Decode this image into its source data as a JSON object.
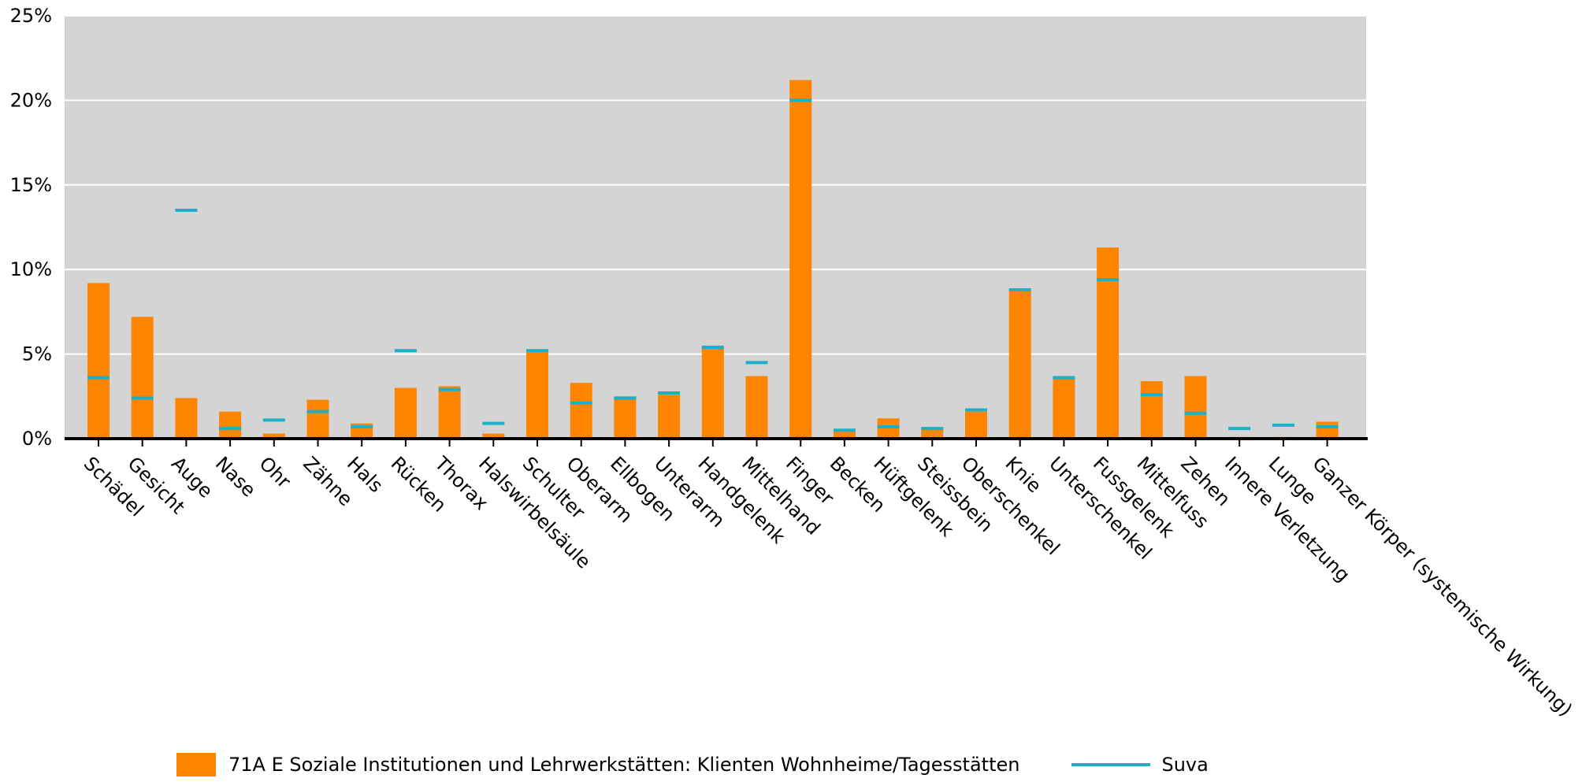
{
  "chart_data": {
    "type": "bar",
    "categories": [
      "Schädel",
      "Gesicht",
      "Auge",
      "Nase",
      "Ohr",
      "Zähne",
      "Hals",
      "Rücken",
      "Thorax",
      "Halswirbelsäule",
      "Schulter",
      "Oberarm",
      "Ellbogen",
      "Unterarm",
      "Handgelenk",
      "Mittelhand",
      "Finger",
      "Becken",
      "Hüftgelenk",
      "Steissbein",
      "Oberschenkel",
      "Knie",
      "Unterschenkel",
      "Fussgelenk",
      "Mittelfuss",
      "Zehen",
      "Innere Verletzung",
      "Lunge",
      "Ganzer Körper (systemische Wirkung)"
    ],
    "series": [
      {
        "name": "71A E Soziale Institutionen und Lehrwerkstätten: Klienten Wohnheime/Tagesstätten",
        "kind": "bar",
        "color": "#ff8400",
        "values": [
          9.2,
          7.2,
          2.4,
          1.6,
          0.3,
          2.3,
          0.9,
          3.0,
          3.1,
          0.3,
          5.2,
          3.3,
          2.5,
          2.6,
          5.5,
          3.7,
          21.2,
          0.5,
          1.2,
          0.6,
          1.6,
          8.8,
          3.7,
          11.3,
          3.4,
          3.7,
          0.1,
          0.1,
          1.0
        ]
      },
      {
        "name": "Suva",
        "kind": "marker",
        "color": "#1cb0c8",
        "values": [
          3.6,
          2.4,
          13.5,
          0.6,
          1.1,
          1.6,
          0.7,
          5.2,
          2.9,
          0.9,
          5.2,
          2.1,
          2.4,
          2.7,
          5.4,
          4.5,
          20.0,
          0.5,
          0.7,
          0.6,
          1.7,
          8.8,
          3.6,
          9.4,
          2.6,
          1.5,
          0.6,
          0.8,
          0.7
        ]
      }
    ],
    "y_ticks": [
      "0%",
      "5%",
      "10%",
      "15%",
      "20%",
      "25%"
    ],
    "ylim": [
      0,
      25
    ],
    "grid": true,
    "legend_position": "bottom"
  }
}
